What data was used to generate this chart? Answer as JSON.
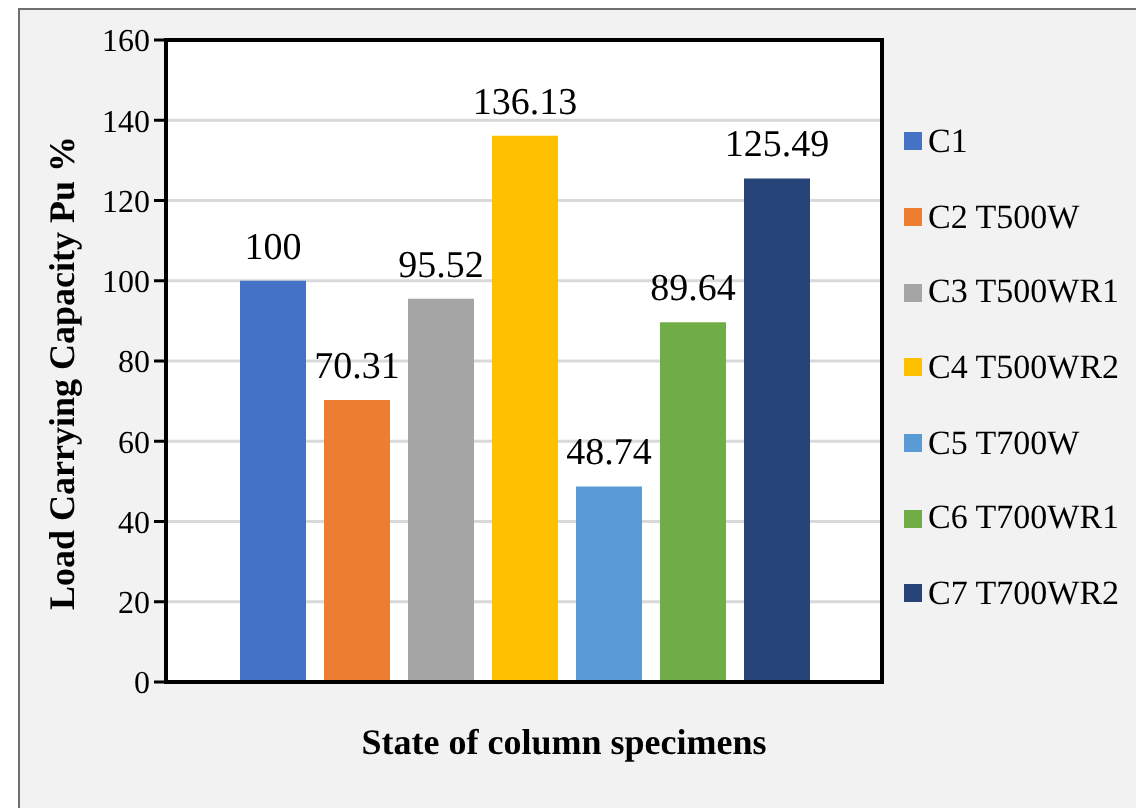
{
  "chart_data": {
    "type": "bar",
    "xlabel": "State of column specimens",
    "ylabel": "Load Carrying Capacity Pu %",
    "categories": [
      null
    ],
    "series": [
      {
        "name": "C1",
        "color": "#4472c4",
        "values": [
          100
        ]
      },
      {
        "name": "C2 T500W",
        "color": "#ed7d31",
        "values": [
          70.31
        ]
      },
      {
        "name": "C3 T500WR1",
        "color": "#a5a5a5",
        "values": [
          95.52
        ]
      },
      {
        "name": "C4 T500WR2",
        "color": "#ffc000",
        "values": [
          136.13
        ]
      },
      {
        "name": "C5 T700W",
        "color": "#5b9bd5",
        "values": [
          48.74
        ]
      },
      {
        "name": "C6 T700WR1",
        "color": "#70ad47",
        "values": [
          89.64
        ]
      },
      {
        "name": "C7 T700WR2",
        "color": "#264478",
        "values": [
          125.49
        ]
      }
    ],
    "ylim": [
      0,
      160
    ],
    "yticks": [
      0,
      20,
      40,
      60,
      80,
      100,
      120,
      140,
      160
    ],
    "grid": "y",
    "legend": "right",
    "data_labels": true
  }
}
